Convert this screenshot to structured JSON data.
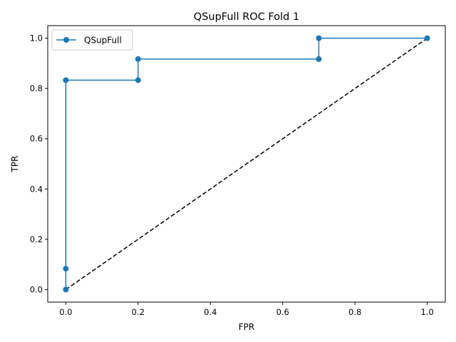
{
  "chart_data": {
    "type": "line",
    "title": "QSupFull ROC Fold 1",
    "xlabel": "FPR",
    "ylabel": "TPR",
    "xlim": [
      -0.05,
      1.05
    ],
    "ylim": [
      -0.05,
      1.05
    ],
    "xticks": [
      0.0,
      0.2,
      0.4,
      0.6,
      0.8,
      1.0
    ],
    "yticks": [
      0.0,
      0.2,
      0.4,
      0.6,
      0.8,
      1.0
    ],
    "xtick_labels": [
      "0.0",
      "0.2",
      "0.4",
      "0.6",
      "0.8",
      "1.0"
    ],
    "ytick_labels": [
      "0.0",
      "0.2",
      "0.4",
      "0.6",
      "0.8",
      "1.0"
    ],
    "grid": false,
    "legend_position": "top-left",
    "series": [
      {
        "name": "QSupFull",
        "color": "#1f77b4",
        "marker": "circle",
        "x": [
          0.0,
          0.0,
          0.0,
          0.2,
          0.2,
          0.7,
          0.7,
          1.0
        ],
        "y": [
          0.0,
          0.083,
          0.833,
          0.833,
          0.917,
          0.917,
          1.0,
          1.0
        ]
      }
    ],
    "reference_line": {
      "color": "#000000",
      "style": "dashed",
      "x": [
        0.0,
        1.0
      ],
      "y": [
        0.0,
        1.0
      ]
    }
  }
}
